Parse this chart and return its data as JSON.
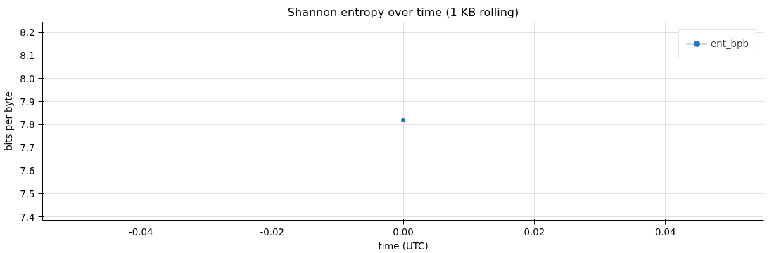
{
  "chart_data": {
    "type": "line",
    "title": "Shannon entropy over time (1 KB rolling)",
    "xlabel": "time (UTC)",
    "ylabel": "bits per byte",
    "x": [
      0.0
    ],
    "series": [
      {
        "name": "ent_bpb",
        "color": "#3274b5",
        "values": [
          7.82
        ]
      }
    ],
    "xlim": [
      -0.055,
      0.055
    ],
    "xticks": [
      -0.04,
      -0.02,
      {
        "value": 0,
        "label": "0.00"
      },
      0.02,
      0.04
    ],
    "ylim": [
      7.385,
      8.245
    ],
    "yticks": [
      7.4,
      7.5,
      7.6,
      7.7,
      7.8,
      7.9,
      {
        "value": 8,
        "label": "8.0"
      },
      8.1,
      8.2
    ],
    "grid": true,
    "legend": "top right",
    "marker": "circle",
    "line_style": "solid"
  }
}
